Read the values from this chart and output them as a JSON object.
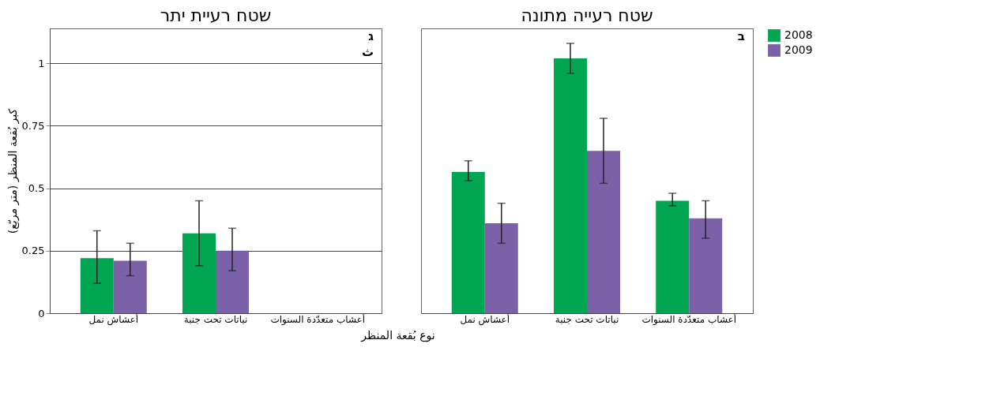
{
  "chart_data": [
    {
      "type": "bar",
      "title": "שטח רעיית יתר",
      "ylabel": "كبر بُقعة المنظر (متر مربّع)",
      "xlabel": "نوع بُقعة المنظر",
      "annotations": [
        "ג",
        "ث"
      ],
      "categories": [
        "أعشاش نمل",
        "نباتات تحت جنبة",
        "أعشاب متعدّدة السنوات"
      ],
      "series": [
        {
          "color": "#00a651",
          "values": [
            0.22,
            0.32,
            null
          ],
          "errors": [
            [
              0.12,
              0.33
            ],
            [
              0.19,
              0.45
            ],
            null
          ]
        },
        {
          "color": "#7b62a8",
          "values": [
            0.21,
            0.25,
            null
          ],
          "errors": [
            [
              0.15,
              0.28
            ],
            [
              0.17,
              0.34
            ],
            null
          ]
        }
      ],
      "ylim": [
        0,
        1.14
      ],
      "yticks": [
        0,
        0.25,
        0.5,
        0.75,
        1
      ],
      "grid": "y",
      "legend": false
    },
    {
      "type": "bar",
      "title": "שטח רעייה מתונה",
      "annotations": [
        "ב"
      ],
      "categories": [
        "أعشاش نمل",
        "نباتات تحت جنبة",
        "أعشاب متعدّدة السنوات"
      ],
      "series": [
        {
          "name": "2008",
          "color": "#00a651",
          "values": [
            0.565,
            1.02,
            0.45
          ],
          "errors": [
            [
              0.53,
              0.61
            ],
            [
              0.96,
              1.08
            ],
            [
              0.43,
              0.48
            ]
          ]
        },
        {
          "name": "2009",
          "color": "#7b62a8",
          "values": [
            0.36,
            0.65,
            0.38
          ],
          "errors": [
            [
              0.28,
              0.44
            ],
            [
              0.52,
              0.78
            ],
            [
              0.3,
              0.45
            ]
          ]
        }
      ],
      "ylim": [
        0,
        1.14
      ],
      "tick_labels": "x",
      "legend": "right"
    }
  ]
}
